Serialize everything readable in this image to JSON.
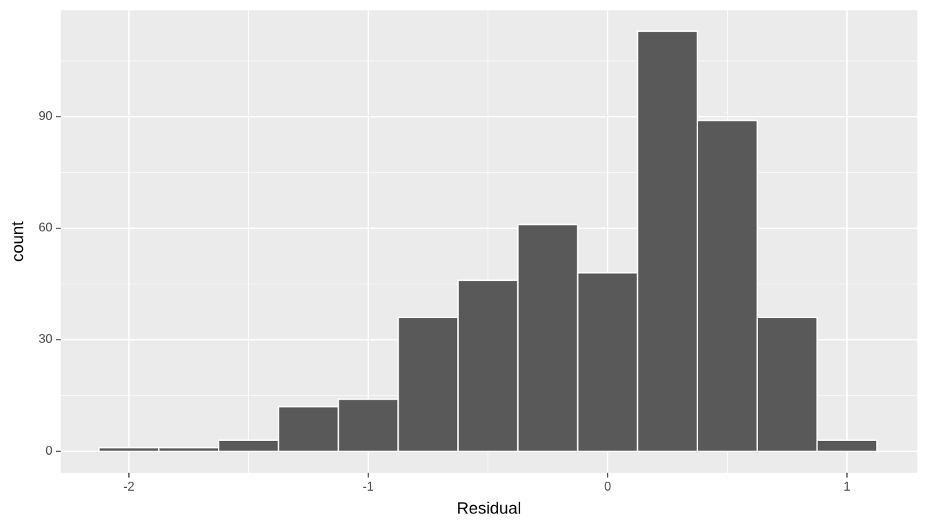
{
  "chart_data": {
    "type": "histogram",
    "x_label": "Residual",
    "y_label": "count",
    "bins": [
      -2.125,
      -1.875,
      -1.625,
      -1.375,
      -1.125,
      -0.875,
      -0.625,
      -0.375,
      -0.125,
      0.125,
      0.375,
      0.625,
      0.875,
      1.125
    ],
    "values": [
      1,
      1,
      3,
      12,
      14,
      36,
      46,
      61,
      48,
      113,
      89,
      36,
      3
    ],
    "color": "#595959",
    "edge_color": "#ffffff",
    "xlim": [
      -2.285,
      1.294
    ],
    "ylim": [
      -5.75,
      118.6
    ],
    "xticks": [
      -2,
      -1,
      0,
      1
    ],
    "yticks": [
      0,
      30,
      60,
      90
    ],
    "x_minor_grid": [
      -1.5,
      -0.5,
      0.5
    ],
    "y_minor_grid": [
      15,
      45,
      75,
      105
    ],
    "grid": true
  }
}
